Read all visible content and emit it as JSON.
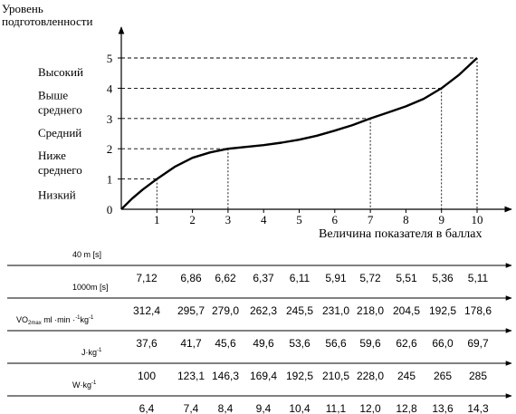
{
  "chart_data": {
    "type": "line",
    "ylabel_line1": "Уровень",
    "ylabel_line2": "подготовленности",
    "xlabel": "Величина показателя в баллах",
    "x_ticks": [
      "1",
      "2",
      "3",
      "4",
      "5",
      "6",
      "7",
      "8",
      "9",
      "10"
    ],
    "y_ticks": [
      "0",
      "1",
      "2",
      "3",
      "4",
      "5"
    ],
    "xlim": [
      0,
      10
    ],
    "ylim": [
      0,
      5
    ],
    "levels": [
      {
        "lines": [
          "Высокий"
        ],
        "y": 4.55
      },
      {
        "lines": [
          "Выше",
          "среднего"
        ],
        "y": 3.55
      },
      {
        "lines": [
          "Средний"
        ],
        "y": 2.55
      },
      {
        "lines": [
          "Ниже",
          "среднего"
        ],
        "y": 1.55
      },
      {
        "lines": [
          "Низкий"
        ],
        "y": 0.5
      }
    ],
    "curve": {
      "x": [
        0,
        0.3,
        0.6,
        1,
        1.5,
        2,
        2.5,
        3,
        3.5,
        4,
        4.5,
        5,
        5.5,
        6,
        6.5,
        7,
        7.5,
        8,
        8.5,
        9,
        9.5,
        10
      ],
      "y": [
        0,
        0.35,
        0.65,
        1,
        1.4,
        1.7,
        1.88,
        2,
        2.06,
        2.12,
        2.2,
        2.3,
        2.43,
        2.6,
        2.78,
        3,
        3.2,
        3.4,
        3.65,
        4,
        4.45,
        5
      ]
    },
    "guides": [
      {
        "x": 1,
        "y": 1
      },
      {
        "x": 3,
        "y": 2
      },
      {
        "x": 7,
        "y": 3
      },
      {
        "x": 9,
        "y": 4
      },
      {
        "x": 10,
        "y": 5
      }
    ],
    "scales": [
      {
        "label_html": "40 m [s]",
        "values": [
          "7,12",
          "6,86",
          "6,62",
          "6,37",
          "6,11",
          "5,91",
          "5,72",
          "5,51",
          "5,36",
          "5,11"
        ]
      },
      {
        "label_html": "1000m [s]",
        "values": [
          "312,4",
          "295,7",
          "279,0",
          "262,3",
          "245,5",
          "231,0",
          "218,0",
          "204,5",
          "192,5",
          "178,6"
        ]
      },
      {
        "label_html": "VO<tspan font-size='6' dy='2'>2max</tspan><tspan dy='-2'> ml ·min ·</tspan><tspan font-size='6' dy='-4'>-1</tspan><tspan dy='4'>kg</tspan><tspan font-size='6' dy='-4'>-1</tspan>",
        "values": [
          "37,6",
          "41,7",
          "45,6",
          "49,6",
          "53,6",
          "56,6",
          "59,6",
          "62,6",
          "66,0",
          "69,7"
        ]
      },
      {
        "label_html": "J·kg<tspan font-size='6' dy='-4'>-1</tspan>",
        "values": [
          "100",
          "123,1",
          "146,3",
          "169,4",
          "192,5",
          "210,5",
          "228,0",
          "245",
          "265",
          "285"
        ]
      },
      {
        "label_html": "W·kg<tspan font-size='6' dy='-4'>-1</tspan>",
        "values": [
          "6,4",
          "7,4",
          "8,4",
          "9,4",
          "10,4",
          "11,1",
          "12,0",
          "12,8",
          "13,6",
          "14,3"
        ]
      }
    ]
  }
}
